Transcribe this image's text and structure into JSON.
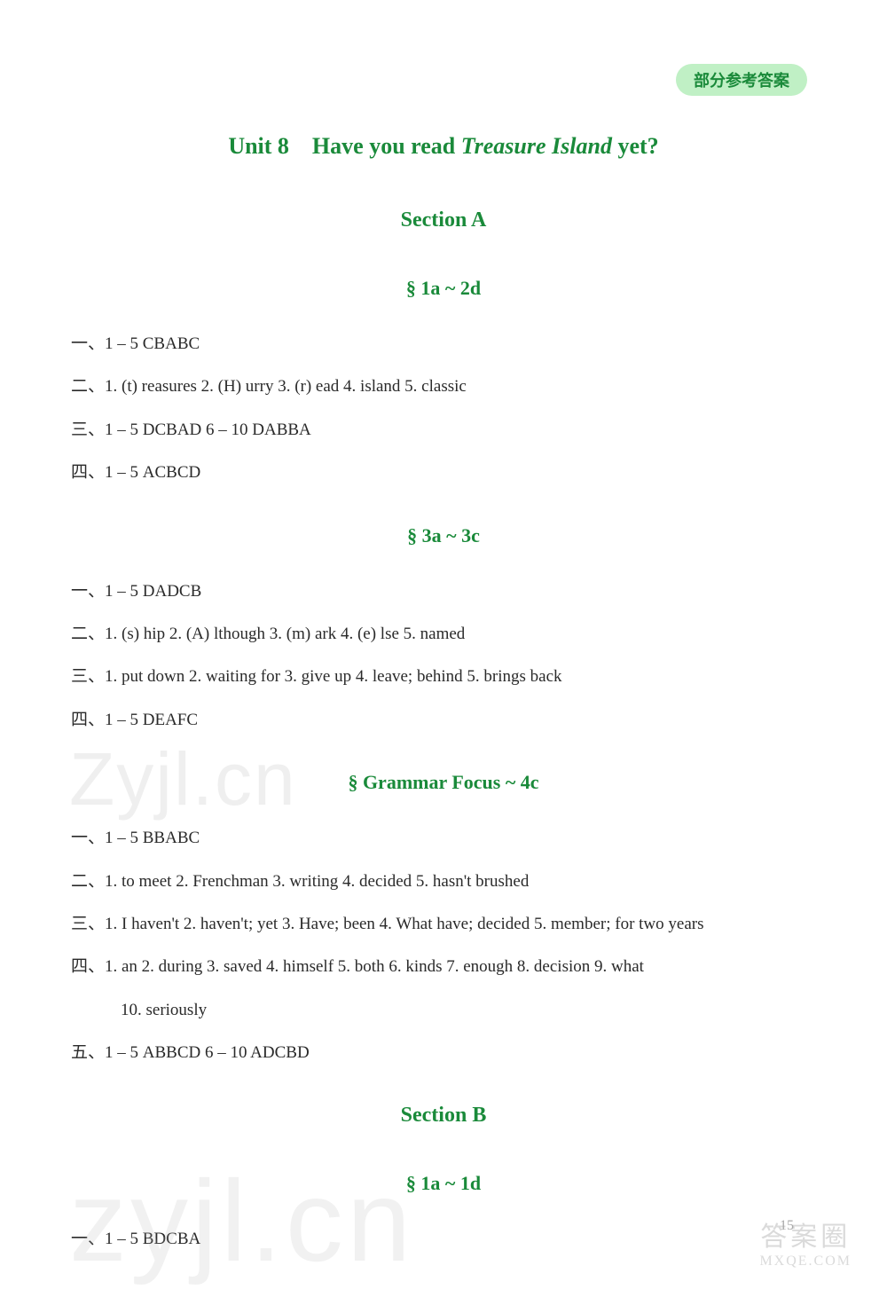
{
  "colors": {
    "accent": "#1a8a3a",
    "badge_bg": "#c0f0c5",
    "text": "#2a2a2a",
    "watermark": "rgba(180,180,180,0.2)"
  },
  "badge": "部分参考答案",
  "unit_title": {
    "prefix": "Unit 8 Have you read ",
    "italic": "Treasure Island",
    "suffix": " yet?"
  },
  "section_a": "Section A",
  "sub_1a2d": "§ 1a ~ 2d",
  "block1": {
    "l1": "一、1 – 5 CBABC",
    "l2": "二、1. (t) reasures   2. (H) urry   3. (r) ead   4. island   5. classic",
    "l3": "三、1 – 5 DCBAD   6 – 10 DABBA",
    "l4": "四、1 – 5 ACBCD"
  },
  "sub_3a3c": "§ 3a ~ 3c",
  "block2": {
    "l1": "一、1 – 5 DADCB",
    "l2": "二、1. (s) hip   2. (A) lthough   3. (m) ark   4. (e) lse   5. named",
    "l3": "三、1. put down   2. waiting for   3. give up   4. leave; behind   5. brings back",
    "l4": "四、1 – 5 DEAFC"
  },
  "sub_gf": "§ Grammar Focus ~ 4c",
  "block3": {
    "l1": "一、1 – 5 BBABC",
    "l2": "二、1. to meet   2. Frenchman   3. writing   4. decided   5. hasn't brushed",
    "l3": "三、1. I haven't   2. haven't; yet   3. Have; been   4. What have; decided   5. member; for two years",
    "l4": "四、1. an   2. during   3. saved   4. himself   5. both   6. kinds   7. enough   8. decision   9. what",
    "l4b": "10. seriously",
    "l5": "五、1 – 5 ABBCD   6 – 10 ADCBD"
  },
  "section_b": "Section B",
  "sub_1a1d": "§ 1a ~ 1d",
  "block4": {
    "l1": "一、1 – 5 BDCBA"
  },
  "watermarks": {
    "w1": "Zyjl.cn",
    "w2": "zyjl.cn",
    "w3a": "答案圈",
    "w3b": "MXQE.COM"
  },
  "page_num": "15"
}
